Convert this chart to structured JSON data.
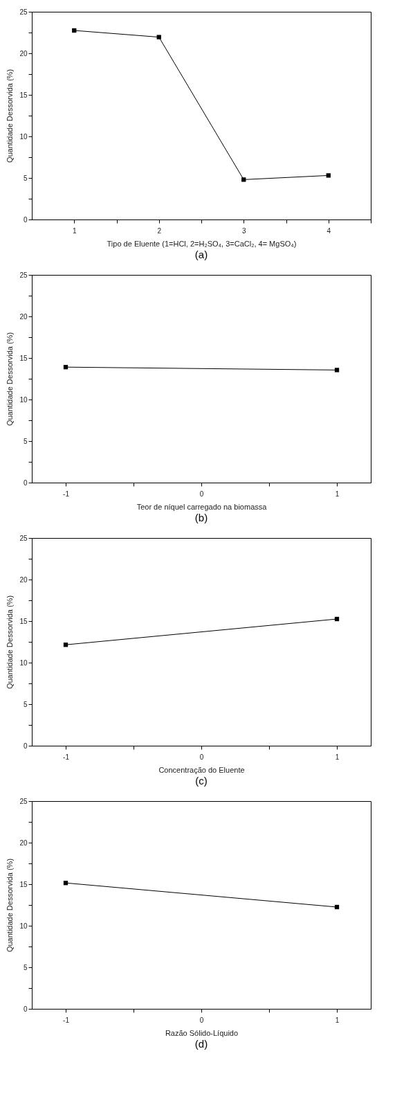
{
  "chart_data": [
    {
      "type": "line",
      "xlabel": "Tipo de Eluente (1=HCl, 2=H₂SO₄, 3=CaCl₂, 4= MgSO₄)",
      "ylabel": "Quantidade Dessorvida (%)",
      "annotations": [
        "(a)"
      ],
      "x": [
        1,
        2,
        3,
        4
      ],
      "values": [
        22.75,
        21.95,
        4.8,
        5.3
      ],
      "color": "#000000",
      "marker": "square",
      "line_style": "solid",
      "xlim": [
        0.5,
        4.5
      ],
      "xticks": [
        1,
        {
          "value": 1.5,
          "label": null
        },
        2,
        {
          "value": 2.5,
          "label": null
        },
        3,
        {
          "value": 3.5,
          "label": null
        },
        4,
        {
          "value": 4.5,
          "label": null
        }
      ],
      "ylim": [
        0,
        25
      ],
      "yticks": [
        0,
        {
          "value": 2.5,
          "label": null
        },
        5,
        {
          "value": 7.5,
          "label": null
        },
        10,
        {
          "value": 12.5,
          "label": null
        },
        15,
        {
          "value": 17.5,
          "label": null
        },
        20,
        {
          "value": 22.5,
          "label": null
        },
        25
      ],
      "grid": false
    },
    {
      "type": "line",
      "xlabel": "Teor de níquel carregado na biomassa",
      "ylabel": "Quantidade Dessorvida (%)",
      "annotations": [
        "(b)"
      ],
      "x": [
        -1,
        1
      ],
      "values": [
        13.9,
        13.55
      ],
      "color": "#000000",
      "marker": "square",
      "line_style": "solid",
      "xlim": [
        -1.25,
        1.25
      ],
      "xticks": [
        -1,
        {
          "value": -0.5,
          "label": null
        },
        0,
        {
          "value": 0.5,
          "label": null
        },
        1
      ],
      "ylim": [
        0,
        25
      ],
      "yticks": [
        0,
        {
          "value": 2.5,
          "label": null
        },
        5,
        {
          "value": 7.5,
          "label": null
        },
        10,
        {
          "value": 12.5,
          "label": null
        },
        15,
        {
          "value": 17.5,
          "label": null
        },
        20,
        {
          "value": 22.5,
          "label": null
        },
        25
      ],
      "grid": false
    },
    {
      "type": "line",
      "xlabel": "Concentração do Eluente",
      "ylabel": "Quantidade Dessorvida (%)",
      "annotations": [
        "(c)"
      ],
      "x": [
        -1,
        1
      ],
      "values": [
        12.15,
        15.25
      ],
      "color": "#000000",
      "marker": "square",
      "line_style": "solid",
      "xlim": [
        -1.25,
        1.25
      ],
      "xticks": [
        -1,
        {
          "value": -0.5,
          "label": null
        },
        0,
        {
          "value": 0.5,
          "label": null
        },
        1
      ],
      "ylim": [
        0,
        25
      ],
      "yticks": [
        0,
        {
          "value": 2.5,
          "label": null
        },
        5,
        {
          "value": 7.5,
          "label": null
        },
        10,
        {
          "value": 12.5,
          "label": null
        },
        15,
        {
          "value": 17.5,
          "label": null
        },
        20,
        {
          "value": 22.5,
          "label": null
        },
        25
      ],
      "grid": false
    },
    {
      "type": "line",
      "xlabel": "Razão Sólido-Líquido",
      "ylabel": "Quantidade Dessorvida (%)",
      "annotations": [
        "(d)"
      ],
      "x": [
        -1,
        1
      ],
      "values": [
        15.15,
        12.25
      ],
      "color": "#000000",
      "marker": "square",
      "line_style": "solid",
      "xlim": [
        -1.25,
        1.25
      ],
      "xticks": [
        -1,
        {
          "value": -0.5,
          "label": null
        },
        0,
        {
          "value": 0.5,
          "label": null
        },
        1
      ],
      "ylim": [
        0,
        25
      ],
      "yticks": [
        0,
        {
          "value": 2.5,
          "label": null
        },
        5,
        {
          "value": 7.5,
          "label": null
        },
        10,
        {
          "value": 12.5,
          "label": null
        },
        15,
        {
          "value": 17.5,
          "label": null
        },
        20,
        {
          "value": 22.5,
          "label": null
        },
        25
      ],
      "grid": false
    }
  ]
}
